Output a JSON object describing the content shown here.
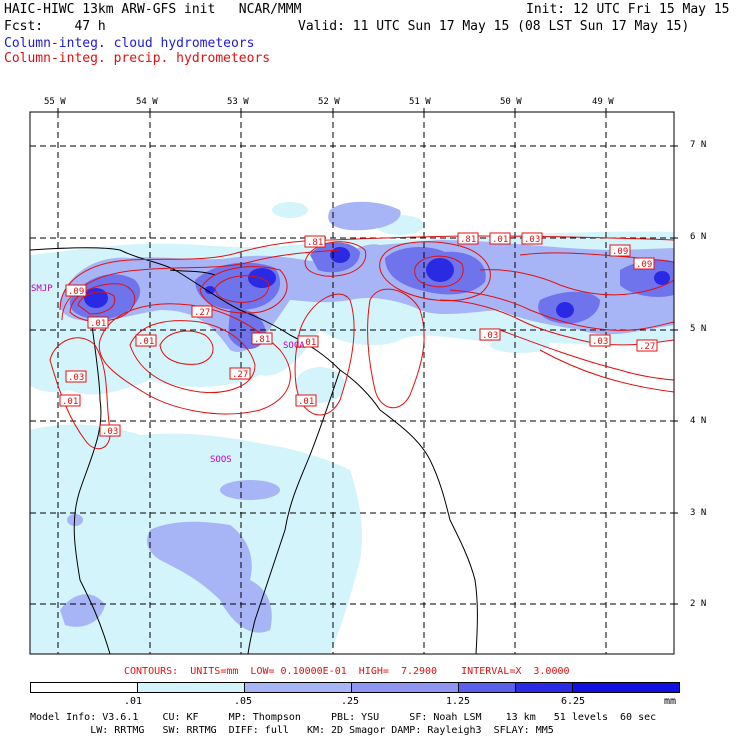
{
  "header": {
    "line1_left": "HAIC-HIWC 13km ARW-GFS init   NCAR/MMM",
    "line1_right": "Init: 12 UTC Fri 15 May 15",
    "line2_left": "Fcst:    47 h",
    "line2_right": "Valid: 11 UTC Sun 17 May 15 (08 LST Sun 17 May 15)",
    "line3": "Column-integ. cloud hydrometeors",
    "line4": "Column-integ. precip. hydrometeors"
  },
  "map": {
    "lon_labels": [
      "55 W",
      "54 W",
      "53 W",
      "52 W",
      "51 W",
      "50 W",
      "49 W"
    ],
    "lat_labels": [
      "7 N",
      "6 N",
      "5 N",
      "4 N",
      "3 N",
      "2 N"
    ],
    "stations": [
      "SMJP",
      "SOCA",
      "SOOS"
    ],
    "contour_labels": [
      ".01",
      ".01",
      ".01",
      ".01",
      ".03",
      ".03",
      ".03",
      ".03",
      ".09",
      ".09",
      ".27",
      ".27",
      ".27",
      ".81",
      ".81",
      ".81",
      ".01",
      ".01",
      ".03",
      ".09"
    ],
    "colors": {
      "cloud_light": "#d4f4fb",
      "cloud_med": "#a7b4f6",
      "cloud_dark": "#6f74ec",
      "cloud_darker": "#3f44e6",
      "cloud_darkest": "#1a1ae0",
      "contour": "#e01010"
    }
  },
  "contour_info": "CONTOURS:  UNITS=mm  LOW= 0.10000E-01  HIGH=  7.2900    INTERVAL=X  3.0000",
  "colorbar": {
    "ticks": [
      ".01",
      ".05",
      ".25",
      "1.25",
      "6.25"
    ],
    "unit": "mm",
    "colors": [
      "#ffffff",
      "#d4f4fb",
      "#a7b4f6",
      "#8f95f2",
      "#5b60ea",
      "#2a2ae4",
      "#1010e0"
    ]
  },
  "footer": {
    "line1": "Model Info: V3.6.1    CU: KF     MP: Thompson     PBL: YSU     SF: Noah LSM    13 km   51 levels  60 sec",
    "line2": "          LW: RRTMG   SW: RRTMG  DIFF: full   KM: 2D Smagor DAMP: Rayleigh3  SFLAY: MM5"
  }
}
